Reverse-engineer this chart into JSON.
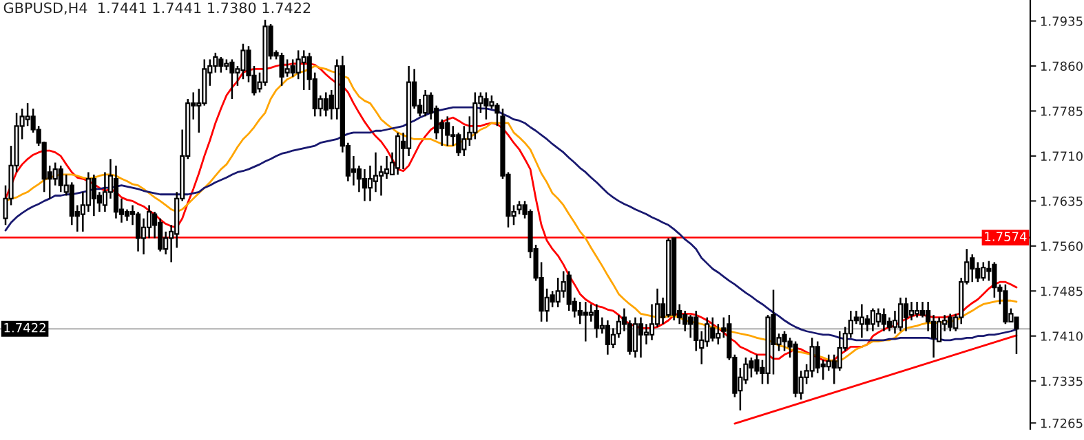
{
  "chart_data": {
    "type": "candlestick",
    "title": "GBPUSD,H4  1.7441 1.7441 1.7380 1.7422",
    "categories": [
      null,
      null,
      null,
      null,
      null,
      null,
      null,
      null,
      null,
      null,
      null,
      null,
      null,
      null,
      null,
      null,
      null,
      null,
      null,
      null,
      null,
      null,
      null,
      null,
      null,
      null,
      null,
      null,
      null,
      null,
      null,
      null,
      null,
      null,
      null,
      null,
      null,
      null,
      null,
      null,
      null,
      null,
      null,
      null,
      null,
      null,
      null,
      null,
      null,
      null,
      null,
      null,
      null,
      null,
      null,
      null,
      null,
      null,
      null,
      null,
      null,
      null,
      null,
      null,
      null,
      null,
      null,
      null,
      null,
      null,
      null,
      null,
      null,
      null,
      null,
      null,
      null,
      null,
      null,
      null,
      null,
      null,
      null,
      null,
      null,
      null,
      null,
      null,
      null,
      null,
      null,
      null,
      null,
      null,
      null,
      null,
      null,
      null,
      null,
      null,
      null,
      null,
      null,
      null,
      null,
      null,
      null,
      null,
      null,
      null,
      null,
      null,
      null,
      null,
      null,
      null,
      null,
      null,
      null,
      null,
      null,
      null,
      null,
      null,
      null,
      null,
      null,
      null,
      null,
      null,
      null,
      null,
      null,
      null,
      null,
      null,
      null,
      null,
      null,
      null,
      null,
      null,
      null,
      null,
      null,
      null,
      null,
      null,
      null,
      null,
      null,
      null,
      null,
      null,
      null,
      null,
      null,
      null,
      null,
      null,
      null,
      null,
      null,
      null,
      null,
      null,
      null,
      null,
      null,
      null,
      null,
      null,
      null,
      null,
      null,
      null,
      null,
      null,
      null,
      null,
      null,
      null,
      null,
      null
    ],
    "color": "#000000",
    "ohlc": [
      [
        1.7606,
        1.7661,
        1.7595,
        1.7639
      ],
      [
        1.7639,
        1.7727,
        1.7628,
        1.7694
      ],
      [
        1.7694,
        1.7782,
        1.7683,
        1.776
      ],
      [
        1.776,
        1.7789,
        1.7738,
        1.7776
      ],
      [
        1.7771,
        1.7798,
        1.776,
        1.7776
      ],
      [
        1.7776,
        1.7789,
        1.7749,
        1.7754
      ],
      [
        1.7754,
        1.776,
        1.7727,
        1.7732
      ],
      [
        1.7732,
        1.7734,
        1.765,
        1.7672
      ],
      [
        1.7683,
        1.7694,
        1.7639,
        1.7672
      ],
      [
        1.7672,
        1.7699,
        1.7661,
        1.7688
      ],
      [
        1.7688,
        1.7694,
        1.765,
        1.7661
      ],
      [
        1.765,
        1.7679,
        1.7644,
        1.7661
      ],
      [
        1.7661,
        1.7666,
        1.7595,
        1.761
      ],
      [
        1.7617,
        1.7628,
        1.7584,
        1.761
      ],
      [
        1.7613,
        1.765,
        1.7584,
        1.7628
      ],
      [
        1.7628,
        1.7683,
        1.7617,
        1.7672
      ],
      [
        1.7672,
        1.7679,
        1.761,
        1.7639
      ],
      [
        1.7644,
        1.765,
        1.7617,
        1.7632
      ],
      [
        1.7628,
        1.7683,
        1.7617,
        1.765
      ],
      [
        1.765,
        1.7705,
        1.7639,
        1.7677
      ],
      [
        1.7672,
        1.7694,
        1.7606,
        1.7617
      ],
      [
        1.7621,
        1.7639,
        1.7599,
        1.7613
      ],
      [
        1.7617,
        1.7621,
        1.7602,
        1.761
      ],
      [
        1.7617,
        1.7628,
        1.7595,
        1.7613
      ],
      [
        1.7613,
        1.7617,
        1.7551,
        1.7573
      ],
      [
        1.7573,
        1.7606,
        1.7546,
        1.7591
      ],
      [
        1.7591,
        1.7628,
        1.7573,
        1.7617
      ],
      [
        1.7613,
        1.7617,
        1.7573,
        1.7595
      ],
      [
        1.7599,
        1.7606,
        1.7551,
        1.7555
      ],
      [
        1.7555,
        1.7584,
        1.7546,
        1.7573
      ],
      [
        1.7573,
        1.7595,
        1.7533,
        1.7584
      ],
      [
        1.758,
        1.765,
        1.7557,
        1.7639
      ],
      [
        1.7639,
        1.7754,
        1.7635,
        1.771
      ],
      [
        1.771,
        1.7805,
        1.7705,
        1.7798
      ],
      [
        1.7798,
        1.7816,
        1.7771,
        1.7794
      ],
      [
        1.7794,
        1.7822,
        1.7749,
        1.7798
      ],
      [
        1.7798,
        1.7871,
        1.7794,
        1.7855
      ],
      [
        1.7849,
        1.7871,
        1.7827,
        1.786
      ],
      [
        1.786,
        1.7882,
        1.7849,
        1.7875
      ],
      [
        1.7871,
        1.7875,
        1.7849,
        1.786
      ],
      [
        1.786,
        1.7871,
        1.7853,
        1.7864
      ],
      [
        1.7866,
        1.7871,
        1.7805,
        1.7849
      ],
      [
        1.7849,
        1.786,
        1.7827,
        1.7855
      ],
      [
        1.7853,
        1.7897,
        1.7838,
        1.7886
      ],
      [
        1.7886,
        1.7893,
        1.7833,
        1.7844
      ],
      [
        1.7844,
        1.786,
        1.7811,
        1.7816
      ],
      [
        1.7822,
        1.7849,
        1.7816,
        1.7833
      ],
      [
        1.7833,
        1.7937,
        1.7827,
        1.7926
      ],
      [
        1.7926,
        1.793,
        1.7871,
        1.7877
      ],
      [
        1.7882,
        1.7886,
        1.7871,
        1.7877
      ],
      [
        1.7877,
        1.7882,
        1.7827,
        1.7842
      ],
      [
        1.7849,
        1.7871,
        1.7842,
        1.7855
      ],
      [
        1.786,
        1.7871,
        1.7842,
        1.7849
      ],
      [
        1.7849,
        1.7886,
        1.7838,
        1.7871
      ],
      [
        1.7866,
        1.7886,
        1.782,
        1.7875
      ],
      [
        1.7875,
        1.7882,
        1.782,
        1.7838
      ],
      [
        1.7838,
        1.7849,
        1.7776,
        1.7789
      ],
      [
        1.7789,
        1.7811,
        1.7776,
        1.7805
      ],
      [
        1.7805,
        1.7816,
        1.7776,
        1.7787
      ],
      [
        1.7811,
        1.782,
        1.7771,
        1.7789
      ],
      [
        1.7789,
        1.7871,
        1.7771,
        1.786
      ],
      [
        1.786,
        1.7877,
        1.7716,
        1.7727
      ],
      [
        1.7727,
        1.7732,
        1.7668,
        1.7677
      ],
      [
        1.7688,
        1.771,
        1.7661,
        1.7683
      ],
      [
        1.7688,
        1.7694,
        1.765,
        1.7672
      ],
      [
        1.7672,
        1.7688,
        1.7635,
        1.7657
      ],
      [
        1.7657,
        1.7694,
        1.7635,
        1.7672
      ],
      [
        1.7668,
        1.7716,
        1.765,
        1.7677
      ],
      [
        1.7677,
        1.7694,
        1.7644,
        1.7683
      ],
      [
        1.7681,
        1.771,
        1.7672,
        1.7688
      ],
      [
        1.7679,
        1.7716,
        1.7679,
        1.7699
      ],
      [
        1.769,
        1.7749,
        1.7679,
        1.7743
      ],
      [
        1.7734,
        1.7749,
        1.7688,
        1.7723
      ],
      [
        1.7723,
        1.786,
        1.771,
        1.7833
      ],
      [
        1.7833,
        1.7855,
        1.7789,
        1.7794
      ],
      [
        1.7794,
        1.7805,
        1.7776,
        1.7782
      ],
      [
        1.7782,
        1.782,
        1.7776,
        1.7811
      ],
      [
        1.7811,
        1.7816,
        1.7771,
        1.7782
      ],
      [
        1.7789,
        1.7794,
        1.7738,
        1.7749
      ],
      [
        1.7765,
        1.7771,
        1.7727,
        1.7756
      ],
      [
        1.7765,
        1.7776,
        1.7727,
        1.7745
      ],
      [
        1.7745,
        1.776,
        1.7727,
        1.7743
      ],
      [
        1.7745,
        1.7749,
        1.771,
        1.7716
      ],
      [
        1.7721,
        1.776,
        1.771,
        1.7738
      ],
      [
        1.7738,
        1.7776,
        1.7727,
        1.7749
      ],
      [
        1.7749,
        1.7816,
        1.7738,
        1.7798
      ],
      [
        1.7798,
        1.7816,
        1.7782,
        1.7809
      ],
      [
        1.7805,
        1.7816,
        1.7771,
        1.7794
      ],
      [
        1.7794,
        1.7811,
        1.7789,
        1.78
      ],
      [
        1.7794,
        1.7798,
        1.776,
        1.7782
      ],
      [
        1.7776,
        1.7789,
        1.7672,
        1.7677
      ],
      [
        1.7679,
        1.7683,
        1.7591,
        1.761
      ],
      [
        1.761,
        1.7628,
        1.7595,
        1.7617
      ],
      [
        1.7621,
        1.7635,
        1.7613,
        1.7628
      ],
      [
        1.7628,
        1.7635,
        1.7606,
        1.7613
      ],
      [
        1.7617,
        1.7621,
        1.754,
        1.7551
      ],
      [
        1.7555,
        1.7562,
        1.7502,
        1.7507
      ],
      [
        1.7507,
        1.7533,
        1.7434,
        1.7452
      ],
      [
        1.7452,
        1.7489,
        1.7434,
        1.7474
      ],
      [
        1.7478,
        1.7485,
        1.7458,
        1.7467
      ],
      [
        1.7467,
        1.7507,
        1.7458,
        1.7485
      ],
      [
        1.7485,
        1.7518,
        1.7474,
        1.75
      ],
      [
        1.7511,
        1.7518,
        1.7452,
        1.7463
      ],
      [
        1.7467,
        1.7474,
        1.7441,
        1.7452
      ],
      [
        1.7452,
        1.7467,
        1.743,
        1.7445
      ],
      [
        1.7449,
        1.7467,
        1.7401,
        1.7445
      ],
      [
        1.7445,
        1.7463,
        1.7434,
        1.7449
      ],
      [
        1.7452,
        1.7463,
        1.7407,
        1.7423
      ],
      [
        1.7423,
        1.7441,
        1.7414,
        1.7427
      ],
      [
        1.7427,
        1.7436,
        1.7379,
        1.7396
      ],
      [
        1.7396,
        1.7423,
        1.739,
        1.7412
      ],
      [
        1.7414,
        1.7445,
        1.7407,
        1.7434
      ],
      [
        1.7441,
        1.7456,
        1.7418,
        1.743
      ],
      [
        1.743,
        1.7436,
        1.7379,
        1.7385
      ],
      [
        1.7385,
        1.7441,
        1.7374,
        1.743
      ],
      [
        1.743,
        1.7441,
        1.7374,
        1.7412
      ],
      [
        1.7412,
        1.743,
        1.7396,
        1.7416
      ],
      [
        1.7412,
        1.7463,
        1.7403,
        1.743
      ],
      [
        1.743,
        1.7489,
        1.7425,
        1.7463
      ],
      [
        1.7463,
        1.7474,
        1.743,
        1.7441
      ],
      [
        1.7445,
        1.7573,
        1.7441,
        1.7569
      ],
      [
        1.7573,
        1.7573,
        1.7436,
        1.7445
      ],
      [
        1.7452,
        1.7463,
        1.743,
        1.7441
      ],
      [
        1.7445,
        1.7452,
        1.7418,
        1.743
      ],
      [
        1.7441,
        1.7445,
        1.7407,
        1.743
      ],
      [
        1.7441,
        1.7452,
        1.7385,
        1.7403
      ],
      [
        1.739,
        1.7418,
        1.7363,
        1.7403
      ],
      [
        1.7401,
        1.7441,
        1.7392,
        1.743
      ],
      [
        1.7423,
        1.7441,
        1.7401,
        1.7407
      ],
      [
        1.7407,
        1.743,
        1.7396,
        1.7414
      ],
      [
        1.7423,
        1.7441,
        1.7407,
        1.7418
      ],
      [
        1.743,
        1.7445,
        1.737,
        1.7374
      ],
      [
        1.7374,
        1.7379,
        1.7308,
        1.7315
      ],
      [
        1.7319,
        1.7357,
        1.7286,
        1.7341
      ],
      [
        1.7337,
        1.7374,
        1.733,
        1.7363
      ],
      [
        1.7368,
        1.7374,
        1.7341,
        1.7357
      ],
      [
        1.737,
        1.7379,
        1.7346,
        1.7352
      ],
      [
        1.7357,
        1.737,
        1.733,
        1.7348
      ],
      [
        1.7348,
        1.7445,
        1.733,
        1.7441
      ],
      [
        1.7445,
        1.7487,
        1.7346,
        1.7396
      ],
      [
        1.7396,
        1.7414,
        1.7385,
        1.7407
      ],
      [
        1.7412,
        1.7418,
        1.7385,
        1.7401
      ],
      [
        1.7401,
        1.7407,
        1.7374,
        1.7392
      ],
      [
        1.7396,
        1.7401,
        1.7308,
        1.7315
      ],
      [
        1.7315,
        1.7352,
        1.7304,
        1.7341
      ],
      [
        1.7341,
        1.7363,
        1.733,
        1.7352
      ],
      [
        1.7352,
        1.7407,
        1.7341,
        1.7392
      ],
      [
        1.7392,
        1.7401,
        1.7348,
        1.7357
      ],
      [
        1.7363,
        1.737,
        1.7337,
        1.7359
      ],
      [
        1.7359,
        1.7379,
        1.7352,
        1.7368
      ],
      [
        1.7368,
        1.7379,
        1.733,
        1.7357
      ],
      [
        1.7357,
        1.7418,
        1.7352,
        1.739
      ],
      [
        1.739,
        1.7425,
        1.7385,
        1.7414
      ],
      [
        1.7414,
        1.7452,
        1.7407,
        1.7436
      ],
      [
        1.7441,
        1.7452,
        1.743,
        1.7436
      ],
      [
        1.743,
        1.7463,
        1.7407,
        1.7441
      ],
      [
        1.7438,
        1.7445,
        1.7418,
        1.743
      ],
      [
        1.743,
        1.7456,
        1.7418,
        1.7452
      ],
      [
        1.7434,
        1.7456,
        1.7425,
        1.7447
      ],
      [
        1.7445,
        1.7456,
        1.7418,
        1.743
      ],
      [
        1.7434,
        1.7441,
        1.7418,
        1.7425
      ],
      [
        1.7425,
        1.7452,
        1.7414,
        1.7436
      ],
      [
        1.7425,
        1.7474,
        1.7418,
        1.7463
      ],
      [
        1.7463,
        1.7474,
        1.7418,
        1.7441
      ],
      [
        1.7445,
        1.7467,
        1.7436,
        1.7452
      ],
      [
        1.7447,
        1.7467,
        1.7441,
        1.7452
      ],
      [
        1.7452,
        1.7467,
        1.7441,
        1.7445
      ],
      [
        1.7452,
        1.7467,
        1.7418,
        1.7434
      ],
      [
        1.7434,
        1.7445,
        1.7374,
        1.7407
      ],
      [
        1.7401,
        1.7441,
        1.7401,
        1.7434
      ],
      [
        1.743,
        1.7445,
        1.7418,
        1.7436
      ],
      [
        1.7441,
        1.7447,
        1.7418,
        1.7425
      ],
      [
        1.7423,
        1.7447,
        1.7418,
        1.7441
      ],
      [
        1.7441,
        1.7507,
        1.743,
        1.75
      ],
      [
        1.75,
        1.7555,
        1.7496,
        1.7533
      ],
      [
        1.754,
        1.7546,
        1.75,
        1.7522
      ],
      [
        1.7522,
        1.7533,
        1.75,
        1.7507
      ],
      [
        1.7507,
        1.7533,
        1.7502,
        1.7524
      ],
      [
        1.7522,
        1.7535,
        1.7502,
        1.7518
      ],
      [
        1.7529,
        1.7533,
        1.7474,
        1.7491
      ],
      [
        1.7491,
        1.7496,
        1.7463,
        1.7485
      ],
      [
        1.7485,
        1.7496,
        1.743,
        1.7434
      ],
      [
        1.7434,
        1.7456,
        1.7434,
        1.7447
      ],
      [
        1.7441,
        1.7441,
        1.738,
        1.7422
      ]
    ],
    "series": [
      {
        "type": "line",
        "color": "#ff0000",
        "values": [
          1.7639,
          1.7661,
          1.7683,
          1.7696,
          1.7705,
          1.7712,
          1.7716,
          1.7719,
          1.7719,
          1.7716,
          1.771,
          1.7696,
          1.7683,
          1.7674,
          1.7672,
          1.7668,
          1.7663,
          1.7657,
          1.7652,
          1.7655,
          1.765,
          1.7641,
          1.7637,
          1.7635,
          1.763,
          1.7626,
          1.7619,
          1.7613,
          1.7604,
          1.7597,
          1.7593,
          1.7591,
          1.7606,
          1.7632,
          1.7655,
          1.7681,
          1.771,
          1.7736,
          1.7765,
          1.7789,
          1.7811,
          1.7824,
          1.7835,
          1.7849,
          1.7853,
          1.7855,
          1.7855,
          1.7855,
          1.7857,
          1.786,
          1.7862,
          1.7862,
          1.7864,
          1.7864,
          1.7864,
          1.7864,
          1.7862,
          1.7855,
          1.7846,
          1.7838,
          1.7831,
          1.7827,
          1.7816,
          1.7798,
          1.7782,
          1.7767,
          1.7754,
          1.7743,
          1.7734,
          1.7721,
          1.7705,
          1.7688,
          1.7685,
          1.7694,
          1.7712,
          1.773,
          1.7743,
          1.7754,
          1.776,
          1.7767,
          1.7771,
          1.7774,
          1.7769,
          1.7763,
          1.776,
          1.776,
          1.776,
          1.7763,
          1.7765,
          1.7763,
          1.7756,
          1.7745,
          1.7732,
          1.7721,
          1.7705,
          1.7688,
          1.7639,
          1.7595,
          1.7569,
          1.7555,
          1.7544,
          1.7529,
          1.7511,
          1.7496,
          1.748,
          1.7471,
          1.7465,
          1.746,
          1.7458,
          1.7454,
          1.7452,
          1.7445,
          1.7436,
          1.743,
          null,
          1.7423,
          1.7423,
          1.7423,
          1.7425,
          1.743,
          1.7436,
          1.7445,
          1.7447,
          1.7447,
          1.7447,
          1.7445,
          1.7441,
          1.7436,
          1.743,
          1.7423,
          1.7416,
          1.7407,
          1.7401,
          1.7392,
          1.7388,
          1.7383,
          1.7379,
          1.7379,
          1.7379,
          1.7372,
          1.7372,
          1.7379,
          1.7383,
          1.739,
          1.7388,
          1.7383,
          1.7379,
          1.7374,
          1.737,
          1.7368,
          1.737,
          1.7379,
          1.7385,
          1.7392,
          1.7392,
          1.7392,
          1.7396,
          1.741,
          1.7416,
          1.7421,
          1.7425,
          1.7427,
          1.7434,
          1.7438,
          1.7443,
          1.7445,
          1.7445,
          1.7443,
          1.7441,
          1.7441,
          1.7441,
          1.7443,
          1.7445,
          1.7449,
          1.7458,
          1.7465,
          1.7471,
          1.748,
          1.7489,
          1.7496,
          1.75,
          1.75,
          1.7496,
          1.7491
        ]
      },
      {
        "type": "line",
        "color": "#ffa500",
        "values": [
          1.7635,
          1.7639,
          1.7641,
          1.7646,
          1.765,
          1.7657,
          1.7663,
          1.767,
          1.7674,
          1.7677,
          1.7679,
          1.7679,
          1.7679,
          1.7677,
          1.7674,
          1.7672,
          1.7674,
          1.7677,
          1.7679,
          1.7679,
          1.7677,
          1.7672,
          1.7668,
          1.7663,
          1.7661,
          1.7655,
          1.7648,
          1.7641,
          1.7635,
          1.7628,
          1.7621,
          1.7617,
          1.7621,
          1.763,
          1.7639,
          1.7648,
          1.7657,
          1.7666,
          1.7677,
          1.7688,
          1.7696,
          1.771,
          1.7725,
          1.7738,
          1.7747,
          1.7758,
          1.7771,
          1.7782,
          1.7805,
          1.782,
          1.7829,
          1.7838,
          1.7842,
          1.7849,
          1.7851,
          1.7855,
          1.786,
          1.7857,
          1.7855,
          1.7851,
          1.7849,
          1.7844,
          1.784,
          1.7822,
          1.7809,
          1.7802,
          1.7798,
          1.7785,
          1.7771,
          1.7763,
          1.7756,
          1.7749,
          1.7745,
          1.7741,
          1.7738,
          1.7738,
          1.7738,
          1.7738,
          1.7734,
          1.773,
          1.7727,
          1.7727,
          1.7732,
          1.7736,
          1.7741,
          1.7747,
          1.7754,
          1.7758,
          1.7765,
          1.7765,
          1.7765,
          1.7765,
          1.7749,
          1.7741,
          1.7732,
          1.7721,
          1.7701,
          1.7681,
          1.7666,
          1.7648,
          1.7639,
          1.7628,
          1.7613,
          1.7599,
          1.7584,
          1.7573,
          1.7557,
          1.7542,
          1.7527,
          1.7511,
          1.7496,
          1.748,
          1.7471,
          1.7463,
          1.7456,
          1.7447,
          1.7445,
          1.7443,
          1.7441,
          1.7441,
          1.7443,
          1.7443,
          1.7441,
          1.7436,
          1.7434,
          1.7432,
          1.743,
          1.7427,
          1.7425,
          1.7423,
          1.7421,
          1.7418,
          1.7416,
          1.7414,
          1.7412,
          1.741,
          1.7407,
          1.7405,
          1.7403,
          1.7399,
          1.7394,
          1.7392,
          1.7388,
          1.7385,
          1.7383,
          1.7381,
          1.7379,
          1.7377,
          1.7374,
          1.737,
          1.7368,
          1.7368,
          1.7374,
          1.7381,
          1.7388,
          1.7392,
          1.7396,
          1.7401,
          1.7401,
          1.7403,
          1.7403,
          1.7407,
          1.7416,
          1.7423,
          1.7425,
          1.7427,
          1.743,
          1.7432,
          1.7432,
          1.7432,
          1.7434,
          1.7434,
          1.7436,
          1.7441,
          1.7447,
          1.7452,
          1.7458,
          1.7463,
          1.7465,
          1.7467,
          1.7469,
          1.7469,
          1.7469,
          1.7467
        ]
      },
      {
        "type": "line",
        "color": "#191970",
        "values": [
          1.7586,
          1.7599,
          1.7608,
          1.7615,
          1.7621,
          1.7626,
          1.763,
          1.7635,
          1.7639,
          1.7644,
          1.7644,
          1.7646,
          1.7646,
          1.7648,
          1.765,
          1.7652,
          1.7655,
          1.7655,
          1.7657,
          1.7657,
          1.7659,
          1.7661,
          1.7659,
          1.7657,
          1.7655,
          1.7652,
          1.765,
          1.7648,
          1.7646,
          1.7646,
          1.7646,
          1.7646,
          1.7646,
          1.7646,
          1.7648,
          1.765,
          1.7657,
          1.7661,
          1.7666,
          1.767,
          1.7674,
          1.7679,
          1.7683,
          1.7685,
          1.7688,
          1.7692,
          1.7696,
          1.7701,
          1.7705,
          1.771,
          1.7714,
          1.7716,
          1.7719,
          1.7721,
          1.7723,
          1.7725,
          1.7727,
          1.7732,
          1.7734,
          1.7736,
          1.7738,
          1.7743,
          1.7747,
          1.7749,
          1.7749,
          1.7749,
          1.7749,
          1.7752,
          1.7752,
          1.7754,
          1.7756,
          1.7758,
          1.776,
          1.7765,
          1.7769,
          1.7774,
          1.7778,
          1.7782,
          1.7785,
          1.7787,
          1.7789,
          1.7791,
          1.7791,
          1.7791,
          1.7791,
          1.7791,
          1.7789,
          1.7789,
          1.7787,
          1.7785,
          1.778,
          1.7776,
          1.7771,
          1.7769,
          1.7765,
          1.7758,
          1.7752,
          1.7745,
          1.7738,
          1.773,
          1.7723,
          1.7716,
          1.7707,
          1.7699,
          1.769,
          1.7683,
          1.7674,
          1.7666,
          1.7657,
          1.7648,
          1.7641,
          1.7635,
          1.763,
          1.7626,
          1.7621,
          1.7617,
          1.7613,
          1.7608,
          1.7604,
          1.7599,
          1.7595,
          1.7588,
          1.758,
          1.7571,
          1.7564,
          1.7555,
          1.754,
          1.7531,
          1.7522,
          1.7516,
          1.7509,
          1.7502,
          1.7496,
          1.7489,
          1.7482,
          1.7476,
          1.7469,
          1.7463,
          1.7456,
          1.7449,
          1.7443,
          1.7436,
          1.743,
          1.7425,
          1.7421,
          1.7418,
          1.7416,
          1.7414,
          1.7412,
          1.7412,
          1.741,
          1.7407,
          1.7405,
          1.7405,
          1.7403,
          1.7403,
          1.7403,
          1.7403,
          1.7403,
          1.7403,
          1.7405,
          1.7405,
          1.7407,
          1.7407,
          1.7407,
          1.7407,
          1.7407,
          1.7407,
          1.7405,
          1.7405,
          1.7403,
          1.7403,
          1.7405,
          1.7405,
          1.7407,
          1.7407,
          1.741,
          1.741,
          1.7412,
          1.7412,
          1.7414,
          1.7416,
          1.7418,
          1.7421
        ]
      },
      {
        "type": "line",
        "color": "#ff0000",
        "values": [
          null,
          null,
          null,
          null,
          null,
          null,
          null,
          null,
          null,
          null,
          null,
          null,
          null,
          null,
          null,
          null,
          null,
          null,
          null,
          null,
          null,
          null,
          null,
          null,
          null,
          null,
          null,
          null,
          null,
          null,
          null,
          null,
          null,
          null,
          null,
          null,
          null,
          null,
          null,
          null,
          null,
          null,
          null,
          null,
          null,
          null,
          null,
          null,
          null,
          null,
          null,
          null,
          null,
          null,
          null,
          null,
          null,
          null,
          null,
          null,
          null,
          null,
          null,
          null,
          null,
          null,
          null,
          null,
          null,
          null,
          null,
          null,
          null,
          null,
          null,
          null,
          null,
          null,
          null,
          null,
          null,
          null,
          null,
          null,
          null,
          null,
          null,
          null,
          null,
          null,
          null,
          null,
          null,
          null,
          null,
          null,
          null,
          null,
          null,
          null,
          null,
          null,
          null,
          null,
          null,
          null,
          null,
          null,
          null,
          null,
          null,
          null,
          null,
          null,
          null,
          null,
          null,
          null,
          null,
          null,
          null,
          null,
          null,
          null,
          null,
          null,
          null,
          null,
          null,
          null,
          null,
          null,
          1.7264,
          null,
          null,
          null,
          null,
          null,
          null,
          null,
          null,
          null,
          null,
          null,
          null,
          null,
          null,
          null,
          null,
          null,
          null,
          null,
          null,
          null,
          null,
          null,
          null,
          null,
          null,
          null,
          null,
          null,
          null,
          null,
          null,
          null,
          null,
          null,
          null,
          null,
          null,
          null,
          null,
          null,
          null,
          null,
          null,
          null,
          null,
          null,
          null,
          null,
          null,
          1.7411
        ]
      }
    ],
    "ylim": [
      1.7255,
      1.797
    ],
    "yticks": [
      1.7935,
      {
        "value": 1.786,
        "label": "1.7860"
      },
      1.7785,
      {
        "value": 1.771,
        "label": "1.7710"
      },
      1.7635,
      {
        "value": 1.756,
        "label": "1.7560"
      },
      1.7485,
      {
        "value": 1.741,
        "label": "1.7410"
      },
      1.7335,
      1.7265
    ],
    "ref_lines": [
      {
        "axis": "y",
        "value": 1.7574,
        "label": "1.7574",
        "color": "#ff0000"
      },
      {
        "axis": "y",
        "value": 1.7422,
        "label": "1.7422",
        "color": "#c0c0c0"
      }
    ]
  }
}
